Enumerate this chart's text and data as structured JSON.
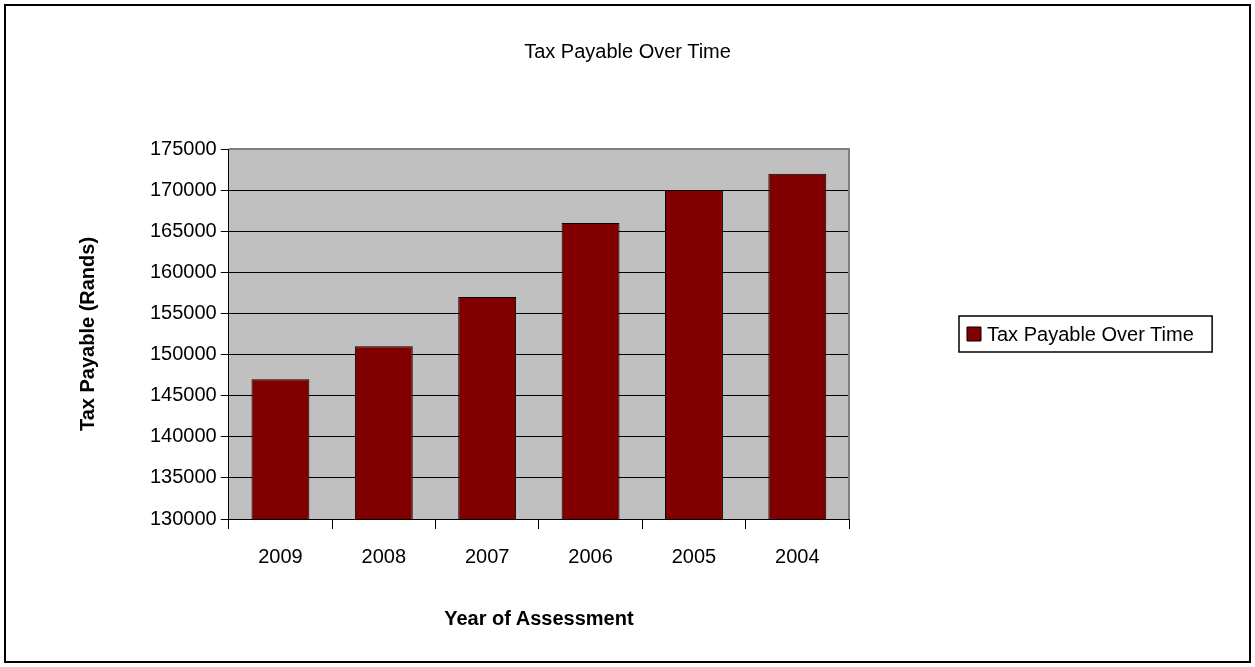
{
  "chart_data": {
    "type": "bar",
    "title": "Tax Payable Over Time",
    "xlabel": "Year of Assessment",
    "ylabel": "Tax Payable (Rands)",
    "categories": [
      "2009",
      "2008",
      "2007",
      "2006",
      "2005",
      "2004"
    ],
    "series": [
      {
        "name": "Tax Payable Over Time",
        "color": "#800000",
        "values": [
          147000,
          151000,
          157000,
          166000,
          170000,
          172000
        ]
      }
    ],
    "ylim": [
      130000,
      175000
    ],
    "yticks": [
      130000,
      135000,
      140000,
      145000,
      150000,
      155000,
      160000,
      165000,
      170000,
      175000
    ],
    "grid": "y",
    "legend": "right"
  }
}
